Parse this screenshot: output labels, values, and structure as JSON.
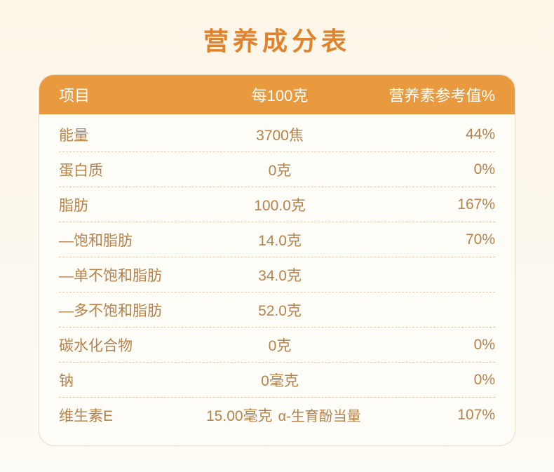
{
  "title": "营养成分表",
  "colors": {
    "title": "#e0832c",
    "header_bg": "#e99a3f",
    "header_text": "#ffffff",
    "body_text": "#b6824a",
    "card_bg": "#fffdf8",
    "page_bg_top": "#fdf5e8",
    "page_bg_bottom": "#fdfbf5",
    "divider": "rgba(200,160,110,0.55)"
  },
  "columns": [
    "项目",
    "每100克",
    "营养素参考值%"
  ],
  "rows": [
    {
      "label": "能量",
      "value": "3700焦",
      "nrv": "44%"
    },
    {
      "label": "蛋白质",
      "value": "0克",
      "nrv": "0%"
    },
    {
      "label": "脂肪",
      "value": "100.0克",
      "nrv": "167%"
    },
    {
      "label": "—饱和脂肪",
      "value": "14.0克",
      "nrv": "70%"
    },
    {
      "label": "—单不饱和脂肪",
      "value": "34.0克",
      "nrv": ""
    },
    {
      "label": "—多不饱和脂肪",
      "value": "52.0克",
      "nrv": ""
    },
    {
      "label": "碳水化合物",
      "value": "0克",
      "nrv": "0%"
    },
    {
      "label": "钠",
      "value": "0毫克",
      "nrv": "0%"
    },
    {
      "label": "维生素E",
      "value": "15.00毫克",
      "extra": "α-生育酚当量",
      "nrv": "107%"
    }
  ]
}
